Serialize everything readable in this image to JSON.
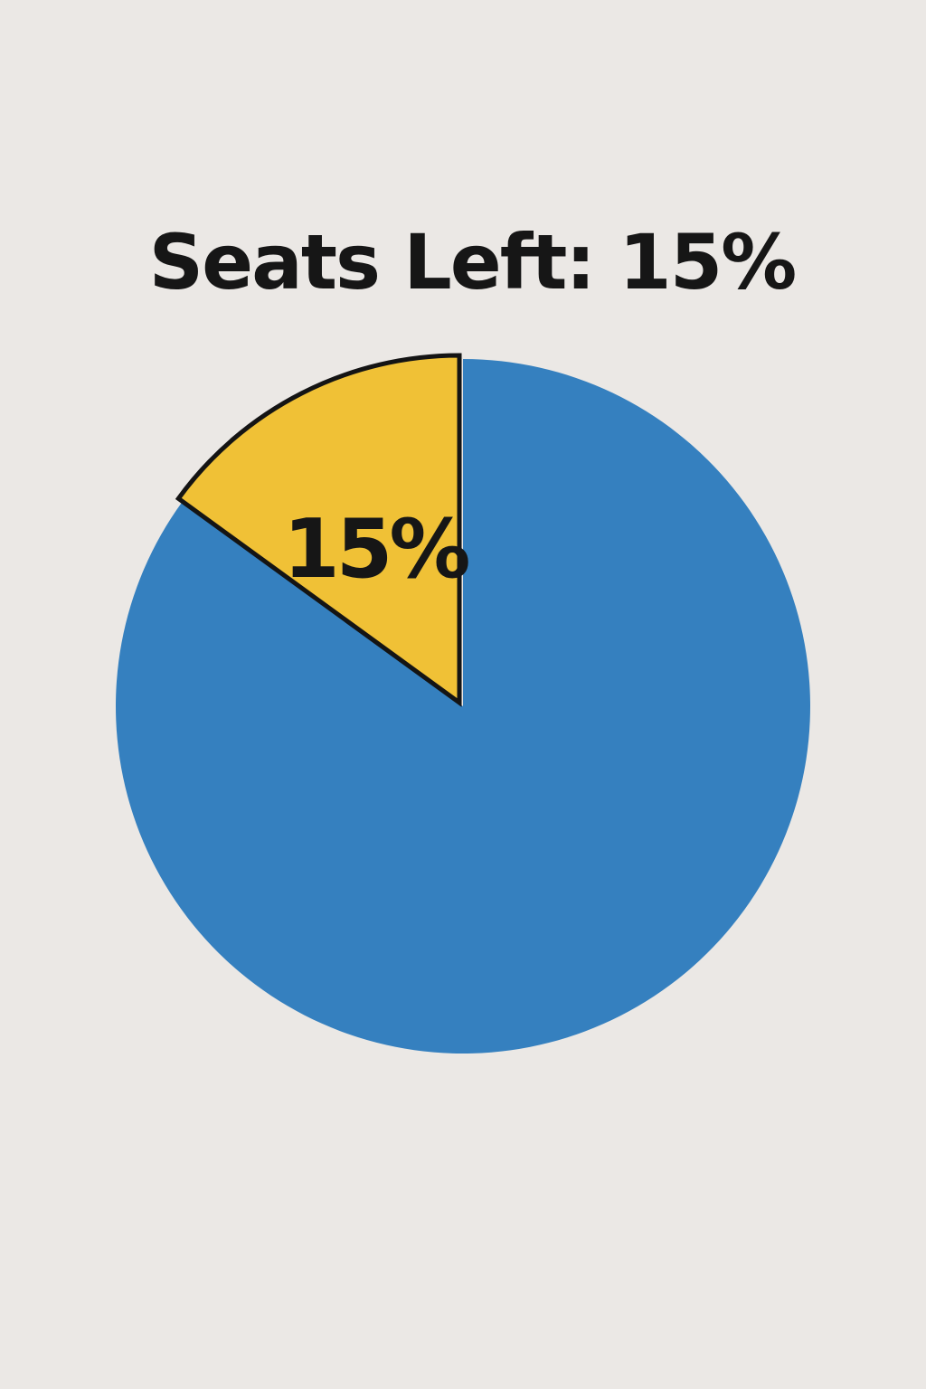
{
  "chart_data": {
    "type": "pie",
    "title": "Seats Left: 15%",
    "slices": [
      {
        "name": "",
        "value": 85,
        "color": "#3580bf"
      },
      {
        "name": "",
        "value": 15,
        "color": "#f0c136",
        "label": "15%",
        "highlighted": true
      }
    ],
    "legend": "none"
  }
}
